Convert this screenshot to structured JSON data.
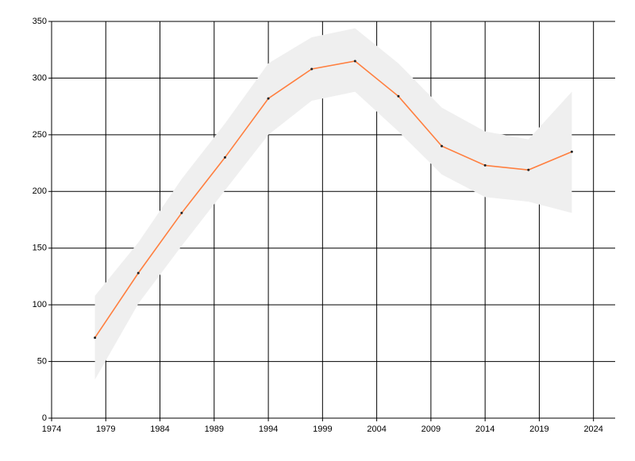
{
  "chart_data": {
    "type": "line",
    "x": [
      1978,
      1982,
      1986,
      1990,
      1994,
      1998,
      2002,
      2006,
      2010,
      2014,
      2018,
      2022
    ],
    "series": [
      {
        "color": "#ff7f3f",
        "marker_color": "#222222",
        "values": [
          71,
          128,
          181,
          230,
          282,
          308,
          315,
          284,
          240,
          223,
          219,
          235
        ]
      }
    ],
    "band": {
      "color": "#efefef",
      "lower": [
        34,
        101,
        152,
        201,
        250,
        280,
        288,
        253,
        215,
        195,
        191,
        181
      ],
      "upper": [
        108,
        155,
        211,
        260,
        313,
        336,
        344,
        313,
        274,
        253,
        246,
        288
      ]
    },
    "xlim": [
      1974,
      2026
    ],
    "xticks": [
      1974,
      1979,
      1984,
      1989,
      1994,
      1999,
      2004,
      2009,
      2014,
      2019,
      2024
    ],
    "ylim": [
      0,
      350
    ],
    "yticks": [
      0,
      50,
      100,
      150,
      200,
      250,
      300,
      350
    ],
    "grid": true
  }
}
